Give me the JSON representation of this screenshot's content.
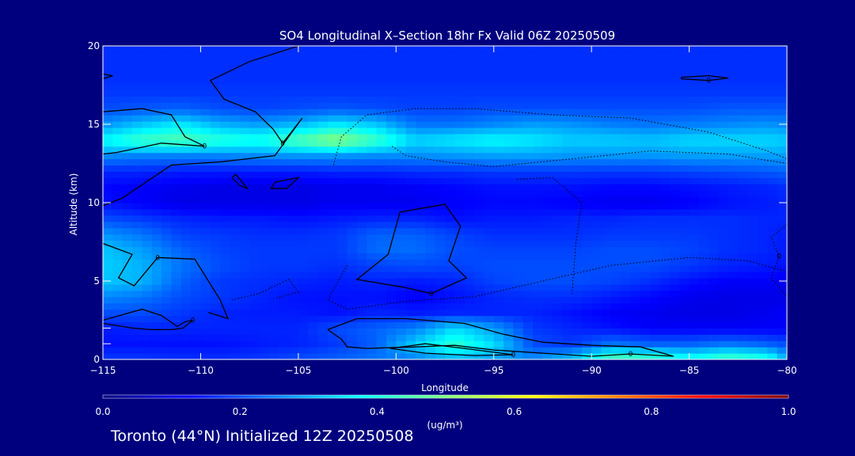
{
  "chart_data": {
    "type": "heatmap",
    "title": "SO4 Longitudinal X–Section 18hr  Fx Valid 06Z 20250509",
    "xlabel": "Longitude",
    "ylabel": "Altitude (km)",
    "xlim": [
      -115,
      -80
    ],
    "ylim": [
      0,
      20
    ],
    "xticks": [
      "−115",
      "−110",
      "−105",
      "−100",
      "−95",
      "−90",
      "−85",
      "−80"
    ],
    "xtick_values": [
      -115,
      -110,
      -105,
      -100,
      -95,
      -90,
      -85,
      -80
    ],
    "yticks": [
      "0",
      "5",
      "10",
      "15",
      "20"
    ],
    "ytick_values": [
      0,
      5,
      10,
      15,
      20
    ],
    "minor_yticks": [
      1,
      2
    ],
    "colorbar": {
      "label": "(ug/m³)",
      "range": [
        0.0,
        1.0
      ],
      "ticks": [
        "0.0",
        "0.2",
        "0.4",
        "0.6",
        "0.8",
        "1.0"
      ],
      "tick_values": [
        0.0,
        0.2,
        0.4,
        0.6,
        0.8,
        1.0
      ]
    },
    "x": [
      -115,
      -113,
      -111,
      -109,
      -107,
      -105,
      -103,
      -101,
      -99,
      -97,
      -95,
      -93,
      -91,
      -89,
      -87,
      -85,
      -83,
      -81,
      -80
    ],
    "y": [
      0,
      1,
      2,
      3,
      4,
      5,
      6,
      7,
      8,
      9,
      10,
      11,
      12,
      13,
      14,
      15,
      16,
      17,
      18,
      19,
      20
    ],
    "z": [
      [
        0.18,
        0.18,
        0.17,
        0.17,
        0.18,
        0.2,
        0.22,
        0.24,
        0.25,
        0.3,
        0.28,
        0.26,
        0.33,
        0.48,
        0.46,
        0.4,
        0.46,
        0.42,
        0.3
      ],
      [
        0.14,
        0.14,
        0.14,
        0.14,
        0.15,
        0.16,
        0.18,
        0.22,
        0.33,
        0.42,
        0.34,
        0.2,
        0.18,
        0.24,
        0.22,
        0.22,
        0.24,
        0.22,
        0.2
      ],
      [
        0.15,
        0.16,
        0.16,
        0.16,
        0.16,
        0.16,
        0.2,
        0.22,
        0.25,
        0.34,
        0.28,
        0.18,
        0.16,
        0.14,
        0.12,
        0.12,
        0.12,
        0.12,
        0.12
      ],
      [
        0.2,
        0.2,
        0.18,
        0.16,
        0.15,
        0.15,
        0.14,
        0.16,
        0.15,
        0.16,
        0.16,
        0.16,
        0.14,
        0.12,
        0.11,
        0.1,
        0.1,
        0.11,
        0.12
      ],
      [
        0.26,
        0.24,
        0.2,
        0.18,
        0.16,
        0.14,
        0.14,
        0.14,
        0.12,
        0.14,
        0.16,
        0.17,
        0.17,
        0.15,
        0.13,
        0.11,
        0.1,
        0.1,
        0.1
      ],
      [
        0.32,
        0.3,
        0.22,
        0.18,
        0.17,
        0.16,
        0.15,
        0.16,
        0.15,
        0.16,
        0.19,
        0.2,
        0.2,
        0.19,
        0.17,
        0.14,
        0.12,
        0.12,
        0.11
      ],
      [
        0.33,
        0.3,
        0.24,
        0.2,
        0.18,
        0.18,
        0.17,
        0.19,
        0.2,
        0.19,
        0.2,
        0.2,
        0.2,
        0.2,
        0.2,
        0.18,
        0.16,
        0.15,
        0.14
      ],
      [
        0.32,
        0.28,
        0.22,
        0.19,
        0.18,
        0.18,
        0.18,
        0.23,
        0.23,
        0.2,
        0.19,
        0.19,
        0.19,
        0.2,
        0.2,
        0.19,
        0.17,
        0.16,
        0.15
      ],
      [
        0.27,
        0.24,
        0.19,
        0.18,
        0.17,
        0.17,
        0.18,
        0.22,
        0.22,
        0.19,
        0.17,
        0.17,
        0.17,
        0.18,
        0.18,
        0.18,
        0.17,
        0.16,
        0.15
      ],
      [
        0.2,
        0.18,
        0.16,
        0.15,
        0.15,
        0.14,
        0.15,
        0.16,
        0.16,
        0.14,
        0.15,
        0.15,
        0.16,
        0.16,
        0.17,
        0.17,
        0.17,
        0.16,
        0.16
      ],
      [
        0.14,
        0.12,
        0.1,
        0.1,
        0.1,
        0.1,
        0.11,
        0.11,
        0.11,
        0.12,
        0.13,
        0.13,
        0.12,
        0.11,
        0.11,
        0.12,
        0.14,
        0.15,
        0.16
      ],
      [
        0.13,
        0.12,
        0.11,
        0.1,
        0.1,
        0.1,
        0.11,
        0.11,
        0.12,
        0.13,
        0.14,
        0.14,
        0.14,
        0.13,
        0.13,
        0.14,
        0.15,
        0.16,
        0.17
      ],
      [
        0.16,
        0.16,
        0.15,
        0.15,
        0.15,
        0.15,
        0.16,
        0.16,
        0.17,
        0.17,
        0.18,
        0.18,
        0.18,
        0.18,
        0.18,
        0.19,
        0.2,
        0.21,
        0.22
      ],
      [
        0.26,
        0.25,
        0.25,
        0.25,
        0.26,
        0.27,
        0.27,
        0.26,
        0.26,
        0.27,
        0.28,
        0.28,
        0.27,
        0.27,
        0.27,
        0.28,
        0.28,
        0.28,
        0.28
      ],
      [
        0.38,
        0.44,
        0.46,
        0.42,
        0.4,
        0.46,
        0.52,
        0.44,
        0.34,
        0.36,
        0.38,
        0.36,
        0.33,
        0.33,
        0.32,
        0.34,
        0.34,
        0.34,
        0.33
      ],
      [
        0.27,
        0.32,
        0.36,
        0.3,
        0.28,
        0.31,
        0.36,
        0.32,
        0.24,
        0.24,
        0.26,
        0.28,
        0.27,
        0.25,
        0.24,
        0.25,
        0.26,
        0.27,
        0.26
      ],
      [
        0.2,
        0.21,
        0.22,
        0.2,
        0.19,
        0.2,
        0.21,
        0.2,
        0.19,
        0.19,
        0.2,
        0.2,
        0.2,
        0.2,
        0.2,
        0.2,
        0.21,
        0.21,
        0.21
      ],
      [
        0.18,
        0.18,
        0.18,
        0.18,
        0.18,
        0.18,
        0.18,
        0.18,
        0.18,
        0.18,
        0.18,
        0.18,
        0.18,
        0.18,
        0.18,
        0.18,
        0.18,
        0.18,
        0.18
      ],
      [
        0.17,
        0.17,
        0.17,
        0.17,
        0.17,
        0.17,
        0.17,
        0.17,
        0.17,
        0.17,
        0.17,
        0.17,
        0.17,
        0.17,
        0.17,
        0.17,
        0.17,
        0.17,
        0.17
      ],
      [
        0.17,
        0.17,
        0.17,
        0.17,
        0.17,
        0.17,
        0.17,
        0.17,
        0.17,
        0.17,
        0.17,
        0.17,
        0.17,
        0.17,
        0.17,
        0.17,
        0.17,
        0.17,
        0.17
      ],
      [
        0.17,
        0.17,
        0.17,
        0.17,
        0.17,
        0.17,
        0.17,
        0.17,
        0.17,
        0.17,
        0.17,
        0.17,
        0.17,
        0.17,
        0.17,
        0.17,
        0.17,
        0.17,
        0.17
      ]
    ],
    "contours": [
      {
        "style": "solid",
        "label": "0",
        "points": [
          [
            -115,
            15.8
          ],
          [
            -113,
            16
          ],
          [
            -111.5,
            15.6
          ],
          [
            -110.8,
            14.2
          ],
          [
            -109.8,
            13.6
          ],
          [
            -112,
            13.8
          ],
          [
            -114.3,
            13.2
          ],
          [
            -115,
            13.1
          ]
        ]
      },
      {
        "style": "solid",
        "label": "0",
        "points": [
          [
            -105,
            20
          ],
          [
            -107.5,
            19
          ],
          [
            -109.5,
            17.8
          ],
          [
            -108.8,
            16.6
          ],
          [
            -107.2,
            15.8
          ],
          [
            -106.3,
            14.7
          ],
          [
            -105.8,
            13.8
          ],
          [
            -104.8,
            15.4
          ],
          [
            -106.2,
            13
          ],
          [
            -109,
            12.6
          ],
          [
            -111.5,
            12.4
          ],
          [
            -114,
            10.3
          ],
          [
            -115,
            9.8
          ]
        ]
      },
      {
        "style": "solid",
        "label": "",
        "points": [
          [
            -108.4,
            11.6
          ],
          [
            -108.0,
            11.1
          ],
          [
            -107.6,
            10.9
          ],
          [
            -108.2,
            11.8
          ],
          [
            -108.4,
            11.6
          ]
        ]
      },
      {
        "style": "solid",
        "label": "",
        "points": [
          [
            -106.2,
            11.3
          ],
          [
            -105.0,
            11.6
          ],
          [
            -105.6,
            10.9
          ],
          [
            -106.4,
            10.9
          ],
          [
            -106.2,
            11.3
          ]
        ]
      },
      {
        "style": "solid",
        "label": "0",
        "points": [
          [
            -99.8,
            9.4
          ],
          [
            -97.5,
            9.9
          ],
          [
            -96.7,
            8.5
          ],
          [
            -97.3,
            6.3
          ],
          [
            -96.4,
            5.2
          ],
          [
            -98.2,
            4.2
          ],
          [
            -99.6,
            4.6
          ],
          [
            -102.0,
            5.1
          ],
          [
            -100.4,
            6.7
          ],
          [
            -99.8,
            9.4
          ]
        ]
      },
      {
        "style": "solid",
        "label": "0",
        "points": [
          [
            -115,
            2.5
          ],
          [
            -113,
            3.2
          ],
          [
            -112,
            2.8
          ],
          [
            -111.2,
            2.1
          ],
          [
            -110.8,
            2.4
          ],
          [
            -110.4,
            2.5
          ],
          [
            -110.9,
            2.0
          ],
          [
            -111.5,
            1.9
          ],
          [
            -112.5,
            1.9
          ],
          [
            -113.5,
            2.0
          ],
          [
            -115,
            2.3
          ]
        ]
      },
      {
        "style": "solid",
        "label": "0",
        "points": [
          [
            -115,
            7.4
          ],
          [
            -113.5,
            6.7
          ],
          [
            -114.2,
            5.2
          ],
          [
            -113.4,
            4.7
          ],
          [
            -112.2,
            6.5
          ],
          [
            -110.3,
            6.4
          ],
          [
            -109.0,
            3.8
          ],
          [
            -108.6,
            2.6
          ],
          [
            -109.6,
            3.0
          ]
        ]
      },
      {
        "style": "solid",
        "label": "0",
        "points": [
          [
            -103.5,
            1.9
          ],
          [
            -102.0,
            2.6
          ],
          [
            -99.5,
            2.6
          ],
          [
            -96.5,
            2.3
          ],
          [
            -94.5,
            1.6
          ],
          [
            -92.5,
            1.1
          ],
          [
            -90.0,
            0.9
          ],
          [
            -87.5,
            0.8
          ],
          [
            -85.8,
            0.2
          ],
          [
            -88.0,
            0.35
          ],
          [
            -90.0,
            0.2
          ],
          [
            -92.5,
            0.4
          ],
          [
            -95.0,
            0.6
          ],
          [
            -97.0,
            0.9
          ],
          [
            -99.0,
            0.8
          ],
          [
            -101.5,
            0.7
          ],
          [
            -102.5,
            0.8
          ],
          [
            -102.8,
            1.3
          ],
          [
            -103.5,
            1.9
          ]
        ]
      },
      {
        "style": "solid",
        "label": "0",
        "points": [
          [
            -100.3,
            0.7
          ],
          [
            -98.5,
            1.0
          ],
          [
            -96.5,
            0.7
          ],
          [
            -94.0,
            0.3
          ],
          [
            -96.0,
            0.25
          ],
          [
            -98.5,
            0.4
          ],
          [
            -100.3,
            0.7
          ]
        ]
      },
      {
        "style": "solid",
        "label": "0",
        "points": [
          [
            -85.4,
            18.0
          ],
          [
            -84.0,
            18.1
          ],
          [
            -83.0,
            17.95
          ],
          [
            -84.0,
            17.8
          ],
          [
            -85.4,
            17.9
          ],
          [
            -85.4,
            18.0
          ]
        ]
      },
      {
        "style": "solid",
        "label": "",
        "points": [
          [
            -115,
            18.2
          ],
          [
            -114.5,
            18.1
          ],
          [
            -115,
            17.9
          ]
        ]
      },
      {
        "style": "dotted",
        "label": "",
        "points": [
          [
            -103.2,
            12.4
          ],
          [
            -102.8,
            14.2
          ],
          [
            -101.5,
            15.6
          ],
          [
            -99.0,
            16.0
          ],
          [
            -96.0,
            16.0
          ],
          [
            -92.0,
            15.6
          ],
          [
            -88.0,
            15.4
          ],
          [
            -84.0,
            14.5
          ],
          [
            -81.0,
            13.3
          ],
          [
            -80,
            12.8
          ]
        ]
      },
      {
        "style": "dotted",
        "label": "",
        "points": [
          [
            -100.2,
            13.6
          ],
          [
            -99.5,
            13.0
          ],
          [
            -97.5,
            12.6
          ],
          [
            -95.0,
            12.3
          ],
          [
            -91.0,
            12.8
          ],
          [
            -87.0,
            13.3
          ],
          [
            -83.0,
            13.1
          ],
          [
            -80,
            12.5
          ]
        ]
      },
      {
        "style": "dotted",
        "label": "",
        "points": [
          [
            -102.5,
            6.0
          ],
          [
            -103.5,
            3.8
          ],
          [
            -102.5,
            3.2
          ],
          [
            -99.5,
            3.7
          ],
          [
            -96.0,
            4.0
          ],
          [
            -92.5,
            5.0
          ],
          [
            -89.0,
            6.0
          ],
          [
            -85.0,
            6.5
          ],
          [
            -82.0,
            6.3
          ],
          [
            -80,
            5.6
          ]
        ]
      },
      {
        "style": "dotted",
        "label": "",
        "points": [
          [
            -93.8,
            11.5
          ],
          [
            -92.0,
            11.6
          ],
          [
            -90.5,
            10.0
          ],
          [
            -90.8,
            7.4
          ],
          [
            -91.0,
            4.2
          ]
        ]
      },
      {
        "style": "dotted",
        "label": "0",
        "points": [
          [
            -80,
            8.6
          ],
          [
            -80.8,
            7.8
          ],
          [
            -80.4,
            6.6
          ],
          [
            -80.8,
            5.2
          ],
          [
            -80,
            4.0
          ]
        ]
      },
      {
        "style": "dotted",
        "label": "",
        "points": [
          [
            -108.4,
            3.8
          ],
          [
            -107.0,
            4.2
          ],
          [
            -105.5,
            5.1
          ],
          [
            -105.0,
            4.3
          ],
          [
            -106.2,
            3.9
          ]
        ]
      }
    ]
  },
  "footer_text": "Toronto (44°N) Initialized 12Z 20250508",
  "colors": {
    "background": "#00007f",
    "text": "#ffffff",
    "contour": "#000000"
  }
}
